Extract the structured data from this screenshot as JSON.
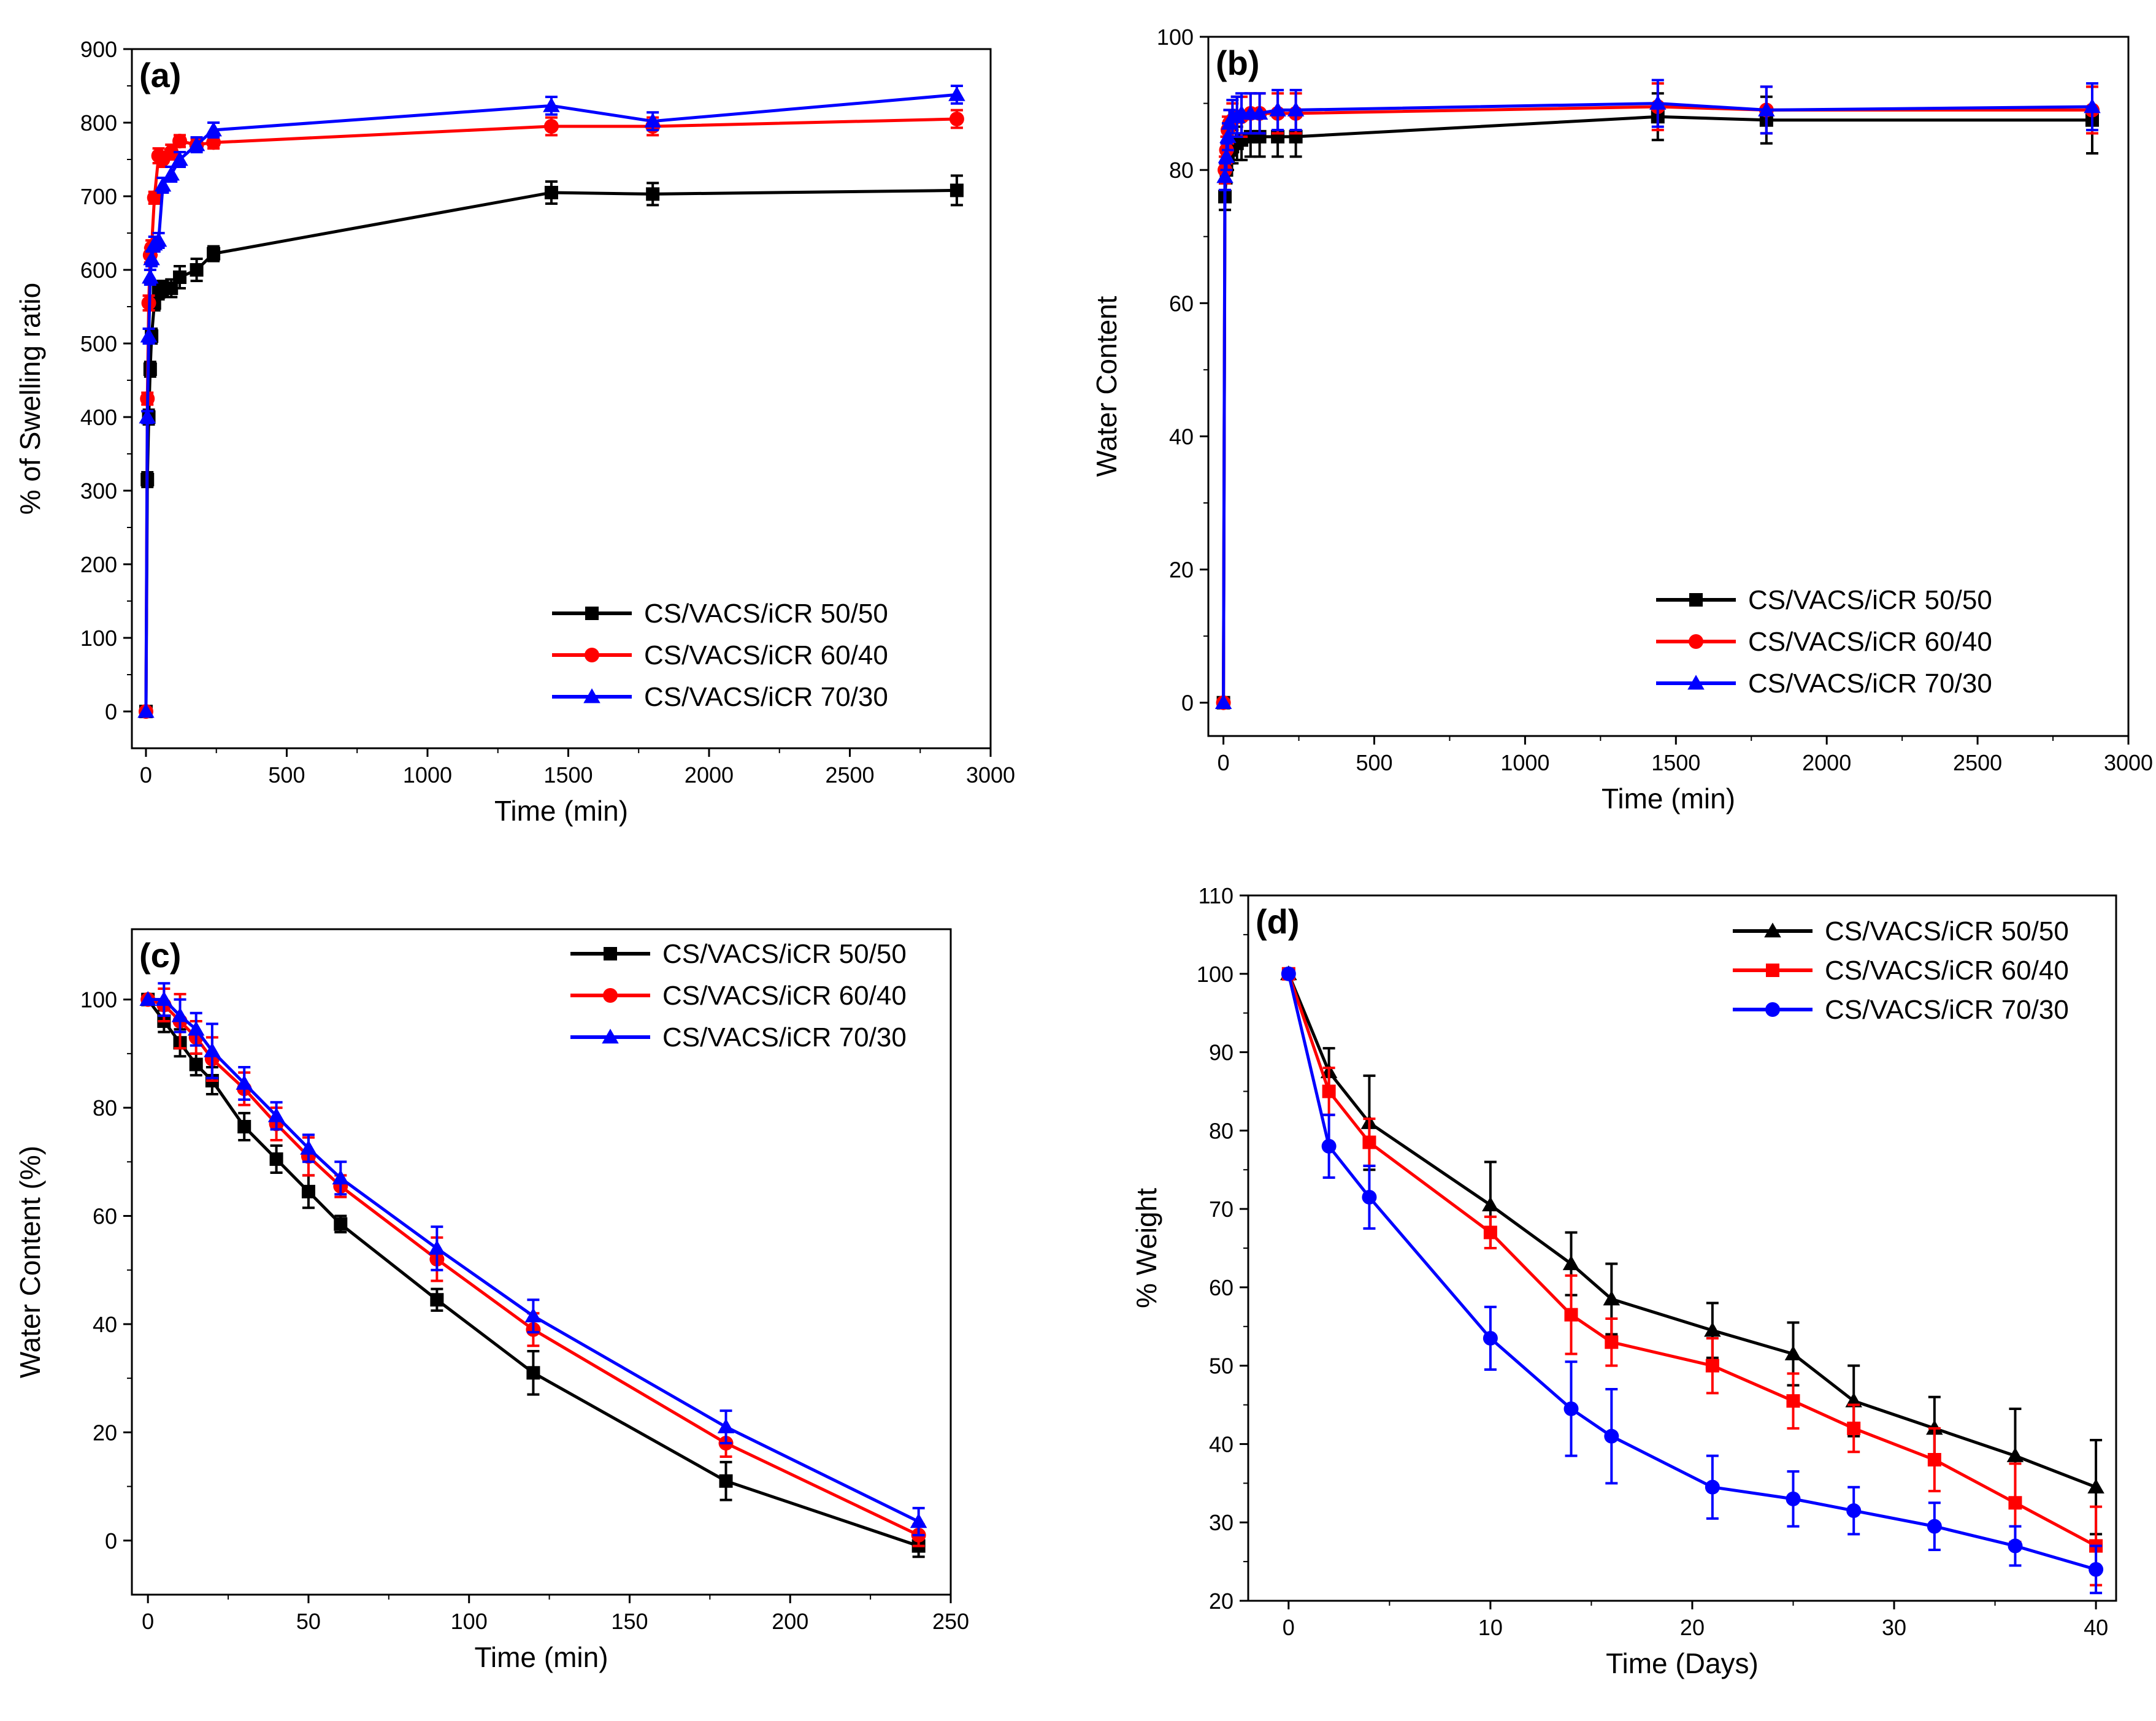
{
  "chart_data": [
    {
      "type": "line",
      "label": "(a)",
      "xlabel": "Time (min)",
      "ylabel": "% of Swelling ratio",
      "xlim": [
        -50,
        3000
      ],
      "ylim": [
        -50,
        900
      ],
      "xticks": [
        0,
        500,
        1000,
        1500,
        2000,
        2500,
        3000
      ],
      "yticks": [
        0,
        100,
        200,
        300,
        400,
        500,
        600,
        700,
        800,
        900
      ],
      "legend_position": "bottom-right",
      "series": [
        {
          "name": "CS/VACS/iCR 50/50",
          "color": "#000000",
          "marker": "square",
          "x": [
            0,
            5,
            10,
            15,
            20,
            30,
            45,
            60,
            90,
            120,
            180,
            240,
            1440,
            1800,
            2880
          ],
          "y": [
            0,
            315,
            400,
            465,
            510,
            555,
            570,
            575,
            575,
            590,
            600,
            622,
            705,
            703,
            708
          ],
          "err": [
            0,
            10,
            10,
            10,
            10,
            10,
            10,
            10,
            12,
            15,
            15,
            10,
            15,
            15,
            20
          ]
        },
        {
          "name": "CS/VACS/iCR 60/40",
          "color": "#ff0000",
          "marker": "circle",
          "x": [
            0,
            5,
            10,
            15,
            20,
            30,
            45,
            60,
            90,
            120,
            180,
            240,
            1440,
            1800,
            2880
          ],
          "y": [
            0,
            425,
            555,
            620,
            630,
            698,
            755,
            750,
            760,
            775,
            770,
            773,
            795,
            795,
            805
          ],
          "err": [
            0,
            8,
            10,
            10,
            10,
            8,
            10,
            10,
            10,
            8,
            8,
            8,
            12,
            12,
            12
          ]
        },
        {
          "name": "CS/VACS/iCR 70/30",
          "color": "#0000ff",
          "marker": "triangle",
          "x": [
            0,
            5,
            10,
            15,
            20,
            30,
            45,
            60,
            90,
            120,
            180,
            240,
            1440,
            1800,
            2880
          ],
          "y": [
            0,
            400,
            510,
            590,
            615,
            635,
            640,
            715,
            730,
            750,
            770,
            790,
            823,
            802,
            838
          ],
          "err": [
            0,
            8,
            10,
            10,
            10,
            10,
            10,
            10,
            10,
            10,
            10,
            10,
            12,
            12,
            12
          ]
        }
      ]
    },
    {
      "type": "line",
      "label": "(b)",
      "xlabel": "Time (min)",
      "ylabel": "Water Content",
      "xlim": [
        -50,
        3000
      ],
      "ylim": [
        -5,
        100
      ],
      "xticks": [
        0,
        500,
        1000,
        1500,
        2000,
        2500,
        3000
      ],
      "yticks": [
        0,
        20,
        40,
        60,
        80,
        100
      ],
      "legend_position": "bottom-right",
      "series": [
        {
          "name": "CS/VACS/iCR 50/50",
          "color": "#000000",
          "marker": "square",
          "x": [
            0,
            5,
            10,
            15,
            20,
            30,
            45,
            60,
            90,
            120,
            180,
            240,
            1440,
            1800,
            2880
          ],
          "y": [
            0,
            76,
            80,
            82,
            83,
            83.5,
            84,
            84.5,
            85,
            85,
            85,
            85,
            88,
            87.5,
            87.5
          ],
          "err": [
            0,
            2,
            2,
            2,
            2,
            2.5,
            2.5,
            3,
            3,
            3,
            3,
            3,
            3.5,
            3.5,
            5
          ]
        },
        {
          "name": "CS/VACS/iCR 60/40",
          "color": "#ff0000",
          "marker": "circle",
          "x": [
            0,
            5,
            10,
            15,
            20,
            30,
            45,
            60,
            90,
            120,
            180,
            240,
            1440,
            1800,
            2880
          ],
          "y": [
            0,
            80,
            83,
            86,
            87,
            87.5,
            88,
            88,
            88.5,
            88.5,
            88.5,
            88.5,
            89.5,
            89,
            89
          ],
          "err": [
            0,
            2,
            2,
            2,
            2,
            2.5,
            3,
            3,
            3,
            3,
            3,
            3,
            3.5,
            3.5,
            3.5
          ]
        },
        {
          "name": "CS/VACS/iCR 70/30",
          "color": "#0000ff",
          "marker": "triangle",
          "x": [
            0,
            5,
            10,
            15,
            20,
            30,
            45,
            60,
            90,
            120,
            180,
            240,
            1440,
            1800,
            2880
          ],
          "y": [
            0,
            79,
            82,
            85,
            87,
            88,
            88,
            88.5,
            88.5,
            88.5,
            89,
            89,
            90,
            89,
            89.5
          ],
          "err": [
            0,
            2,
            2,
            2,
            2,
            2.5,
            3,
            3,
            3,
            3,
            3,
            3,
            3.5,
            3.5,
            3.5
          ]
        }
      ]
    },
    {
      "type": "line",
      "label": "(c)",
      "xlabel": "Time (min)",
      "ylabel": "Water Content (%)",
      "xlim": [
        -5,
        250
      ],
      "ylim": [
        -10,
        113
      ],
      "xticks": [
        0,
        50,
        100,
        150,
        200,
        250
      ],
      "yticks": [
        0,
        20,
        40,
        60,
        80,
        100
      ],
      "legend_position": "top-right",
      "series": [
        {
          "name": "CS/VACS/iCR 50/50",
          "color": "#000000",
          "marker": "square",
          "x": [
            0,
            5,
            10,
            15,
            20,
            30,
            40,
            50,
            60,
            90,
            120,
            180,
            240
          ],
          "y": [
            100,
            96,
            92,
            88,
            85,
            76.5,
            70.5,
            64.5,
            58.5,
            44.5,
            31,
            11,
            -1
          ],
          "err": [
            0,
            2,
            2.5,
            2,
            2.5,
            2.5,
            2.5,
            3,
            1.5,
            2,
            4,
            3.5,
            2
          ]
        },
        {
          "name": "CS/VACS/iCR 60/40",
          "color": "#ff0000",
          "marker": "circle",
          "x": [
            0,
            5,
            10,
            15,
            20,
            30,
            40,
            50,
            60,
            90,
            120,
            180,
            240
          ],
          "y": [
            100,
            99,
            96,
            93,
            89,
            83.5,
            77,
            71,
            65.5,
            52,
            39,
            18,
            1
          ],
          "err": [
            0,
            3,
            5,
            3,
            4,
            3,
            3,
            3.5,
            2,
            4,
            3,
            2.5,
            2
          ]
        },
        {
          "name": "CS/VACS/iCR 70/30",
          "color": "#0000ff",
          "marker": "triangle",
          "x": [
            0,
            5,
            10,
            15,
            20,
            30,
            40,
            50,
            60,
            90,
            120,
            180,
            240
          ],
          "y": [
            100,
            100,
            97,
            94.5,
            90.5,
            84.5,
            78.5,
            72.5,
            67,
            54,
            41.5,
            21,
            3.5
          ],
          "err": [
            0,
            3,
            3,
            3,
            5,
            3,
            2.5,
            2.5,
            3,
            4,
            3,
            3,
            2.5
          ]
        }
      ]
    },
    {
      "type": "line",
      "label": "(d)",
      "xlabel": "Time (Days)",
      "ylabel": "% Weight",
      "xlim": [
        -2,
        41
      ],
      "ylim": [
        20,
        110
      ],
      "xticks": [
        0,
        10,
        20,
        30,
        40
      ],
      "yticks": [
        20,
        30,
        40,
        50,
        60,
        70,
        80,
        90,
        100,
        110
      ],
      "legend_position": "top-right",
      "series": [
        {
          "name": "CS/VACS/iCR 50/50",
          "color": "#000000",
          "marker": "triangle",
          "x": [
            0,
            2,
            4,
            10,
            14,
            16,
            21,
            25,
            28,
            32,
            36,
            40
          ],
          "y": [
            100,
            87.5,
            81,
            70.5,
            63,
            58.5,
            54.5,
            51.5,
            45.5,
            42,
            38.5,
            34.5
          ],
          "err": [
            0,
            3,
            6,
            5.5,
            4,
            4.5,
            3.5,
            4,
            4.5,
            4,
            6,
            6
          ]
        },
        {
          "name": "CS/VACS/iCR 60/40",
          "color": "#ff0000",
          "marker": "square",
          "x": [
            0,
            2,
            4,
            10,
            14,
            16,
            21,
            25,
            28,
            32,
            36,
            40
          ],
          "y": [
            100,
            85,
            78.5,
            67,
            56.5,
            53,
            50,
            45.5,
            42,
            38,
            32.5,
            27
          ],
          "err": [
            0,
            3,
            3,
            2,
            5,
            3,
            3.5,
            3.5,
            3,
            4,
            5,
            5
          ]
        },
        {
          "name": "CS/VACS/iCR 70/30",
          "color": "#0000ff",
          "marker": "circle",
          "x": [
            0,
            2,
            4,
            10,
            14,
            16,
            21,
            25,
            28,
            32,
            36,
            40
          ],
          "y": [
            100,
            78,
            71.5,
            53.5,
            44.5,
            41,
            34.5,
            33,
            31.5,
            29.5,
            27,
            24
          ],
          "err": [
            0,
            4,
            4,
            4,
            6,
            6,
            4,
            3.5,
            3,
            3,
            2.5,
            3
          ]
        }
      ]
    }
  ]
}
